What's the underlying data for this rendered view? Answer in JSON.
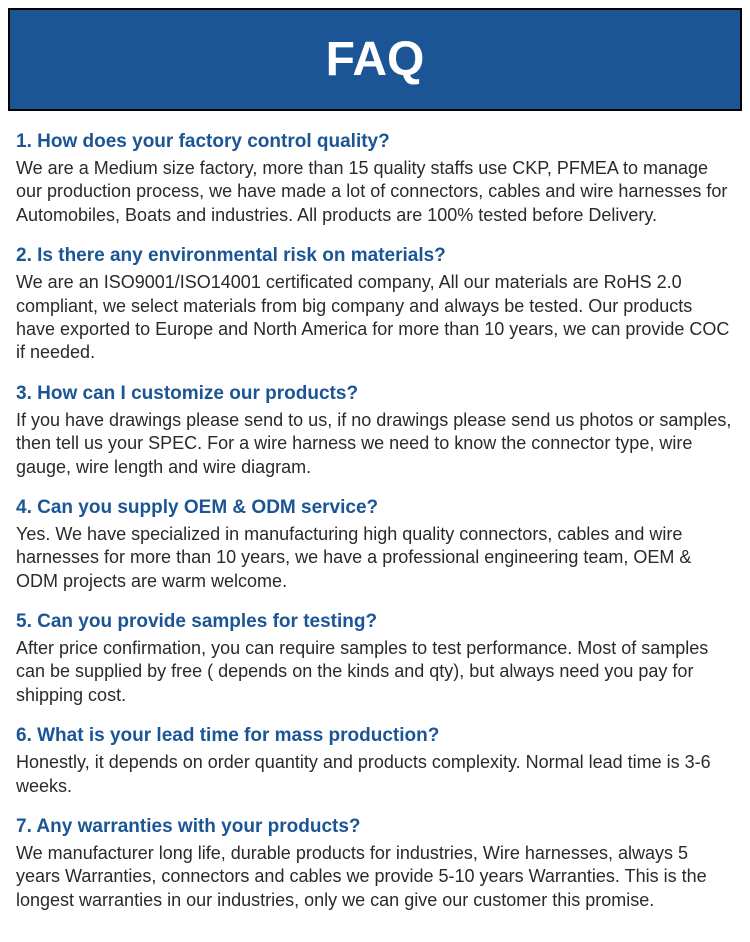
{
  "header": {
    "title": "FAQ"
  },
  "colors": {
    "header_bg": "#1b5596",
    "question_color": "#1b5596",
    "answer_color": "#2a2a2a",
    "body_bg": "#ffffff"
  },
  "faqs": [
    {
      "question": "1. How does your factory control quality?",
      "answer": "We are a Medium size factory, more than 15 quality staffs use CKP, PFMEA to manage our production process, we have made a lot of connectors, cables and wire harnesses for Automobiles, Boats and industries. All products are 100% tested before Delivery."
    },
    {
      "question": "2. Is there any environmental risk on materials?",
      "answer": "We are an ISO9001/ISO14001 certificated company, All our materials are RoHS 2.0 compliant, we select materials from big company and always be tested. Our products have exported to Europe and North America for more than 10 years, we can provide COC if needed."
    },
    {
      "question": "3. How can I customize our products?",
      "answer": "If you have drawings please send to us, if no drawings please send us photos or samples, then tell us your SPEC. For a wire harness we need to know the connector type, wire gauge, wire length and wire diagram."
    },
    {
      "question": "4. Can you supply OEM & ODM service?",
      "answer": "Yes. We have specialized in manufacturing high quality connectors, cables and wire harnesses for more than 10 years, we have a professional engineering team, OEM & ODM projects are warm welcome."
    },
    {
      "question": "5. Can you provide samples for testing?",
      "answer": "After price confirmation, you can require samples to test performance. Most of samples can be supplied by free ( depends on the kinds and qty), but always need you pay for shipping cost."
    },
    {
      "question": "6. What is your lead time for mass production?",
      "answer": "Honestly, it depends on order quantity and products complexity. Normal lead time is 3-6 weeks."
    },
    {
      "question": "7. Any warranties with your products?",
      "answer": "We manufacturer long life, durable products for industries, Wire harnesses, always 5 years Warranties, connectors and cables we provide 5-10 years Warranties. This is the longest warranties in our industries, only we can give our customer this promise."
    }
  ]
}
